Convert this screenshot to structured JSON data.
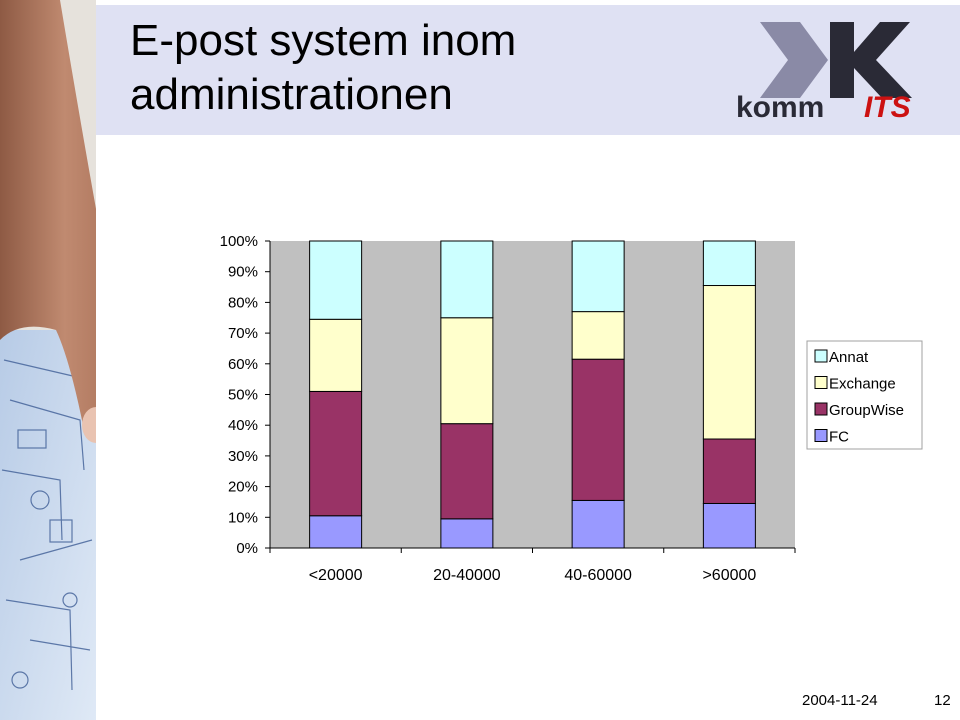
{
  "slide": {
    "title": "E-post system inom\nadministrationen",
    "footer_date": "2004-11-24",
    "page_number": "12"
  },
  "logo": {
    "text_left": "komm",
    "text_right": "ITS",
    "colors": {
      "chevron": "#8a8aa6",
      "k": "#2a2a36",
      "its": "#cc1111"
    }
  },
  "chart_data": {
    "type": "bar",
    "stacked": true,
    "normalized_percent": true,
    "categories": [
      "<20000",
      "20-40000",
      "40-60000",
      ">60000"
    ],
    "series": [
      {
        "name": "FC",
        "color": "#9999ff",
        "values": [
          10.5,
          9.5,
          15.5,
          14.5
        ]
      },
      {
        "name": "GroupWise",
        "color": "#993366",
        "values": [
          40.5,
          31,
          46,
          21
        ]
      },
      {
        "name": "Exchange",
        "color": "#ffffcc",
        "values": [
          23.5,
          34.5,
          15.5,
          50
        ]
      },
      {
        "name": "Annat",
        "color": "#ccffff",
        "values": [
          25.5,
          25,
          23,
          14.5
        ]
      }
    ],
    "legend_order": [
      "Annat",
      "Exchange",
      "GroupWise",
      "FC"
    ],
    "yticks": [
      "0%",
      "10%",
      "20%",
      "30%",
      "40%",
      "50%",
      "60%",
      "70%",
      "80%",
      "90%",
      "100%"
    ],
    "ylim": [
      0,
      100
    ],
    "grid": false,
    "plot_background": "#c0c0c0",
    "legend_position": "right"
  }
}
